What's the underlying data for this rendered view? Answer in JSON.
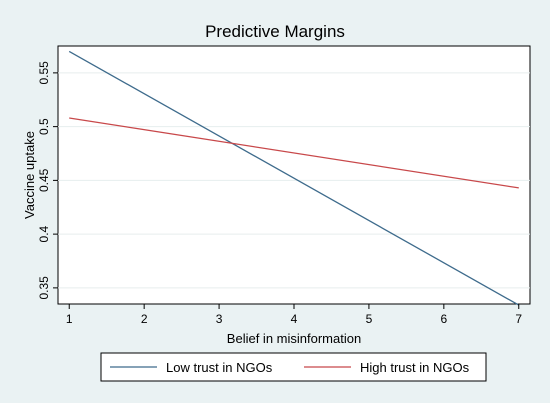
{
  "chart_data": {
    "type": "line",
    "title": "Predictive Margins",
    "xlabel": "Belief in misinformation",
    "ylabel": "Vaccine uptake",
    "x": [
      1,
      7
    ],
    "xlim": [
      1,
      7
    ],
    "ylim": [
      0.335,
      0.575
    ],
    "xticks": [
      1,
      2,
      3,
      4,
      5,
      6,
      7
    ],
    "yticks": [
      0.35,
      0.4,
      0.45,
      0.5,
      0.55
    ],
    "ytick_labels": [
      "0.35",
      "0.4",
      "0.45",
      "0.5",
      "0.55"
    ],
    "grid": "horizontal",
    "legend_position": "bottom",
    "series": [
      {
        "name": "Low trust in NGOs",
        "color": "#3e6b8c",
        "x": [
          1,
          7
        ],
        "values": [
          0.57,
          0.334
        ]
      },
      {
        "name": "High trust in NGOs",
        "color": "#c8484a",
        "x": [
          1,
          7
        ],
        "values": [
          0.508,
          0.443
        ]
      }
    ]
  },
  "colors": {
    "outer_background": "#eaf2f3",
    "plot_background": "#ffffff",
    "grid": "#e6eeee"
  }
}
